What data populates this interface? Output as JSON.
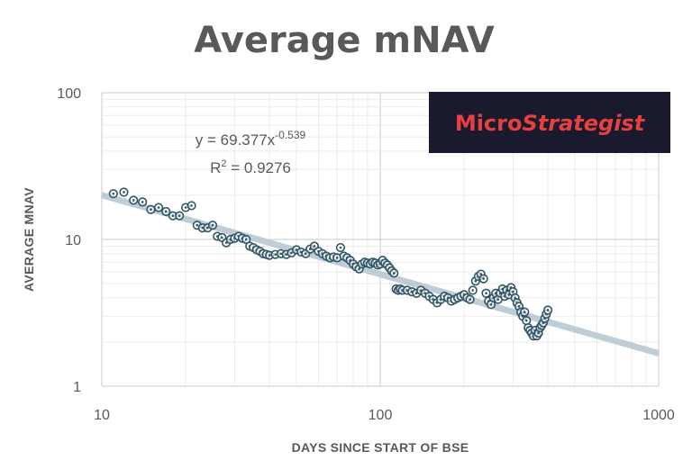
{
  "chart_data": {
    "type": "scatter",
    "title": "Average mNAV",
    "xlabel": "DAYS SINCE START OF BSE",
    "ylabel": "AVERAGE MNAV",
    "x_scale": "log",
    "y_scale": "log",
    "xlim": [
      10,
      1000
    ],
    "ylim": [
      1,
      100
    ],
    "x_ticks": [
      "10",
      "100",
      "1000"
    ],
    "y_ticks": [
      "1",
      "10",
      "100"
    ],
    "grid": true,
    "legend": "none",
    "point_color": "#2f5566",
    "trendline_color": "#b8c8d3",
    "trendline": {
      "type": "power",
      "coefficient": 69.377,
      "exponent": -0.539,
      "equation_prefix": "y = 69.377x",
      "equation_exponent": "-0.539",
      "r2_prefix": "R",
      "r2_superscript": "2",
      "r2_suffix": " = 0.9276"
    },
    "points": [
      [
        11,
        20.5
      ],
      [
        12,
        21
      ],
      [
        13,
        18.5
      ],
      [
        14,
        18
      ],
      [
        15,
        16
      ],
      [
        16,
        16.5
      ],
      [
        17,
        15.5
      ],
      [
        18,
        14.5
      ],
      [
        19,
        14.5
      ],
      [
        20,
        16.5
      ],
      [
        21,
        17
      ],
      [
        22,
        12.5
      ],
      [
        23,
        12
      ],
      [
        24,
        12
      ],
      [
        25,
        12.5
      ],
      [
        26,
        10.5
      ],
      [
        27,
        10.3
      ],
      [
        28,
        9.5
      ],
      [
        29,
        10
      ],
      [
        30,
        10.2
      ],
      [
        31,
        10.5
      ],
      [
        32,
        10.2
      ],
      [
        33,
        10
      ],
      [
        34,
        9
      ],
      [
        35,
        8.8
      ],
      [
        36,
        8.5
      ],
      [
        37,
        8.3
      ],
      [
        38,
        8
      ],
      [
        39,
        7.9
      ],
      [
        40,
        7.8
      ],
      [
        42,
        7.9
      ],
      [
        44,
        8
      ],
      [
        46,
        7.9
      ],
      [
        48,
        8.1
      ],
      [
        50,
        8.5
      ],
      [
        52,
        8.2
      ],
      [
        54,
        8
      ],
      [
        56,
        8.6
      ],
      [
        58,
        9
      ],
      [
        60,
        8.3
      ],
      [
        62,
        8
      ],
      [
        64,
        7.7
      ],
      [
        66,
        7.5
      ],
      [
        68,
        7.6
      ],
      [
        70,
        7.5
      ],
      [
        72,
        8.8
      ],
      [
        74,
        7.7
      ],
      [
        76,
        7.5
      ],
      [
        78,
        7.2
      ],
      [
        80,
        6.8
      ],
      [
        82,
        6.5
      ],
      [
        84,
        6.3
      ],
      [
        86,
        6.8
      ],
      [
        88,
        7
      ],
      [
        90,
        6.9
      ],
      [
        92,
        6.8
      ],
      [
        94,
        7
      ],
      [
        96,
        6.9
      ],
      [
        98,
        6.7
      ],
      [
        100,
        6.8
      ],
      [
        102,
        7.2
      ],
      [
        104,
        6.9
      ],
      [
        106,
        6.7
      ],
      [
        108,
        6.4
      ],
      [
        110,
        6.1
      ],
      [
        112,
        5.9
      ],
      [
        114,
        4.6
      ],
      [
        116,
        4.5
      ],
      [
        118,
        4.6
      ],
      [
        120,
        4.5
      ],
      [
        125,
        4.5
      ],
      [
        130,
        4.4
      ],
      [
        135,
        4.3
      ],
      [
        140,
        4.5
      ],
      [
        145,
        4.3
      ],
      [
        150,
        4.1
      ],
      [
        155,
        3.9
      ],
      [
        160,
        3.7
      ],
      [
        165,
        3.9
      ],
      [
        170,
        4.1
      ],
      [
        175,
        4
      ],
      [
        180,
        3.8
      ],
      [
        185,
        3.9
      ],
      [
        190,
        4
      ],
      [
        195,
        4.1
      ],
      [
        200,
        4.2
      ],
      [
        205,
        4
      ],
      [
        210,
        3.9
      ],
      [
        215,
        4.5
      ],
      [
        220,
        5.2
      ],
      [
        225,
        5.6
      ],
      [
        230,
        5.8
      ],
      [
        235,
        5.4
      ],
      [
        240,
        4.3
      ],
      [
        245,
        3.8
      ],
      [
        250,
        3.6
      ],
      [
        255,
        4
      ],
      [
        260,
        4.3
      ],
      [
        265,
        3.9
      ],
      [
        270,
        4.3
      ],
      [
        275,
        4.6
      ],
      [
        280,
        4.1
      ],
      [
        285,
        4.5
      ],
      [
        290,
        4.2
      ],
      [
        295,
        4.7
      ],
      [
        300,
        4.4
      ],
      [
        305,
        4
      ],
      [
        310,
        3.7
      ],
      [
        315,
        3.5
      ],
      [
        320,
        3.2
      ],
      [
        325,
        3
      ],
      [
        330,
        3.2
      ],
      [
        335,
        2.8
      ],
      [
        340,
        2.5
      ],
      [
        345,
        2.4
      ],
      [
        350,
        2.3
      ],
      [
        355,
        2.2
      ],
      [
        360,
        2.4
      ],
      [
        365,
        2.2
      ],
      [
        370,
        2.3
      ],
      [
        375,
        2.5
      ],
      [
        380,
        2.6
      ],
      [
        385,
        2.7
      ],
      [
        390,
        2.9
      ],
      [
        395,
        3.1
      ],
      [
        400,
        3.3
      ]
    ]
  },
  "logo": {
    "text_plain": "Micro",
    "text_italic": "Strategist",
    "bg_color": "#1a1a2e",
    "text_color": "#e8403e"
  }
}
